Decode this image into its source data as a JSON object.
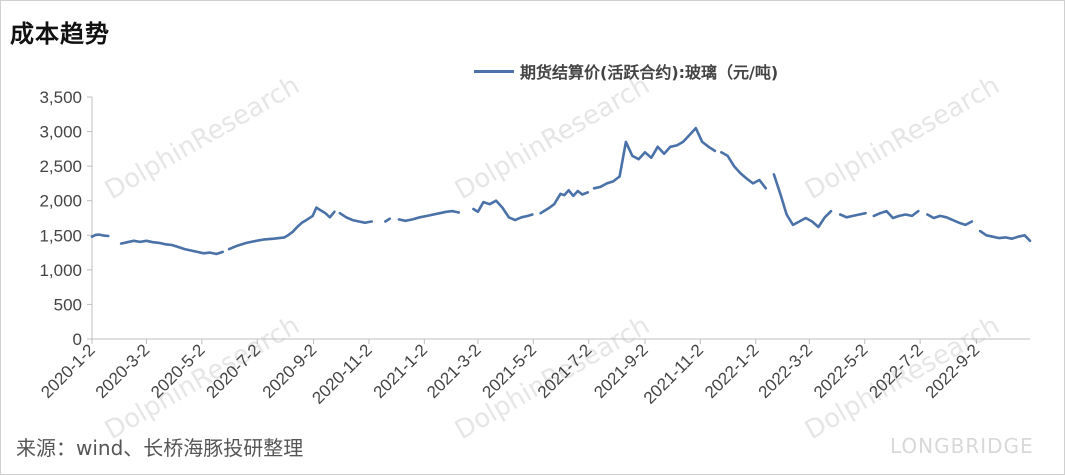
{
  "title": "成本趋势",
  "source": "来源：wind、长桥海豚投研整理",
  "watermark": {
    "brand": "LONGBRIDGE",
    "text": "DolphinResearch"
  },
  "colors": {
    "line": "#4a72a8",
    "axis": "#bfbfbf",
    "text": "#444444"
  },
  "chart_data": {
    "type": "line",
    "title": "",
    "xlabel": "",
    "ylabel": "",
    "ylim": [
      0,
      3500
    ],
    "yticks": [
      0,
      500,
      1000,
      1500,
      2000,
      2500,
      3000,
      3500
    ],
    "ytick_labels": [
      "0",
      "500",
      "1,000",
      "1,500",
      "2,000",
      "2,500",
      "3,000",
      "3,500"
    ],
    "xlim": [
      "2020-01-02",
      "2022-10-31"
    ],
    "xtick_labels": [
      "2020-1-2",
      "2020-3-2",
      "2020-5-2",
      "2020-7-2",
      "2020-9-2",
      "2020-11-2",
      "2021-1-2",
      "2021-3-2",
      "2021-5-2",
      "2021-7-2",
      "2021-9-2",
      "2021-11-2",
      "2022-1-2",
      "2022-3-2",
      "2022-5-2",
      "2022-7-2",
      "2022-9-2"
    ],
    "xticks": [
      "2020-01-02",
      "2020-03-02",
      "2020-05-02",
      "2020-07-02",
      "2020-09-02",
      "2020-11-02",
      "2021-01-02",
      "2021-03-02",
      "2021-05-02",
      "2021-07-02",
      "2021-09-02",
      "2021-11-02",
      "2022-01-02",
      "2022-03-02",
      "2022-05-02",
      "2022-07-02",
      "2022-09-02"
    ],
    "grid": false,
    "legend": "top",
    "series": [
      {
        "name": "期货结算价(活跃合约):玻璃（元/吨)",
        "segments": [
          {
            "x": [
              "2020-01-02",
              "2020-01-06",
              "2020-01-10",
              "2020-01-15",
              "2020-01-20"
            ],
            "y": [
              1480,
              1505,
              1510,
              1495,
              1490
            ]
          },
          {
            "x": [
              "2020-02-03",
              "2020-02-10",
              "2020-02-17",
              "2020-02-24",
              "2020-03-02",
              "2020-03-09",
              "2020-03-16",
              "2020-03-23",
              "2020-03-30",
              "2020-04-06",
              "2020-04-13",
              "2020-04-20",
              "2020-04-27",
              "2020-05-04",
              "2020-05-11",
              "2020-05-18",
              "2020-05-25"
            ],
            "y": [
              1380,
              1400,
              1420,
              1405,
              1420,
              1400,
              1390,
              1370,
              1360,
              1330,
              1300,
              1280,
              1260,
              1240,
              1250,
              1230,
              1260
            ]
          },
          {
            "x": [
              "2020-06-01",
              "2020-06-10",
              "2020-06-20",
              "2020-07-01",
              "2020-07-10",
              "2020-07-20",
              "2020-08-01",
              "2020-08-05",
              "2020-08-10",
              "2020-08-15",
              "2020-08-20",
              "2020-08-25",
              "2020-09-01",
              "2020-09-05",
              "2020-09-10",
              "2020-09-15",
              "2020-09-20",
              "2020-09-25"
            ],
            "y": [
              1300,
              1350,
              1390,
              1420,
              1440,
              1450,
              1470,
              1500,
              1550,
              1620,
              1680,
              1720,
              1780,
              1900,
              1860,
              1820,
              1760,
              1840
            ]
          },
          {
            "x": [
              "2020-10-01",
              "2020-10-08",
              "2020-10-15",
              "2020-10-22",
              "2020-10-29",
              "2020-11-01",
              "2020-11-05"
            ],
            "y": [
              1820,
              1760,
              1720,
              1700,
              1680,
              1690,
              1700
            ]
          },
          {
            "x": [
              "2020-11-20",
              "2020-11-25"
            ],
            "y": [
              1700,
              1740
            ]
          },
          {
            "x": [
              "2020-12-05",
              "2020-12-12",
              "2020-12-20",
              "2020-12-28",
              "2021-01-05",
              "2021-01-12",
              "2021-01-19",
              "2021-01-26",
              "2021-02-02",
              "2021-02-09"
            ],
            "y": [
              1730,
              1710,
              1730,
              1760,
              1780,
              1800,
              1820,
              1840,
              1850,
              1830
            ]
          },
          {
            "x": [
              "2021-02-25",
              "2021-03-02",
              "2021-03-08",
              "2021-03-15",
              "2021-03-22",
              "2021-03-29",
              "2021-04-05",
              "2021-04-12",
              "2021-04-19",
              "2021-04-26",
              "2021-05-01"
            ],
            "y": [
              1880,
              1840,
              1980,
              1950,
              2000,
              1900,
              1760,
              1720,
              1760,
              1780,
              1800
            ]
          },
          {
            "x": [
              "2021-05-10",
              "2021-05-15",
              "2021-05-20",
              "2021-05-25",
              "2021-06-01",
              "2021-06-05",
              "2021-06-10",
              "2021-06-15",
              "2021-06-20",
              "2021-06-25",
              "2021-07-01"
            ],
            "y": [
              1820,
              1860,
              1900,
              1950,
              2100,
              2080,
              2150,
              2070,
              2140,
              2090,
              2120
            ]
          },
          {
            "x": [
              "2021-07-08",
              "2021-07-15",
              "2021-07-22",
              "2021-07-29",
              "2021-08-05",
              "2021-08-12",
              "2021-08-19",
              "2021-08-26",
              "2021-09-02",
              "2021-09-09",
              "2021-09-16",
              "2021-09-23",
              "2021-09-30",
              "2021-10-07",
              "2021-10-14",
              "2021-10-21",
              "2021-10-28",
              "2021-11-04",
              "2021-11-11",
              "2021-11-18"
            ],
            "y": [
              2180,
              2200,
              2250,
              2280,
              2350,
              2850,
              2650,
              2600,
              2700,
              2620,
              2780,
              2680,
              2780,
              2800,
              2850,
              2950,
              3050,
              2850,
              2780,
              2720
            ]
          },
          {
            "x": [
              "2021-11-25",
              "2021-12-02",
              "2021-12-09",
              "2021-12-16",
              "2021-12-23",
              "2021-12-30",
              "2022-01-06",
              "2022-01-13"
            ],
            "y": [
              2700,
              2650,
              2500,
              2400,
              2320,
              2250,
              2300,
              2180
            ]
          },
          {
            "x": [
              "2022-01-22",
              "2022-01-29",
              "2022-02-05",
              "2022-02-12",
              "2022-02-19",
              "2022-02-26",
              "2022-03-05",
              "2022-03-12",
              "2022-03-19",
              "2022-03-26"
            ],
            "y": [
              2380,
              2100,
              1800,
              1650,
              1700,
              1750,
              1700,
              1620,
              1760,
              1850
            ]
          },
          {
            "x": [
              "2022-04-05",
              "2022-04-12",
              "2022-04-19",
              "2022-04-26",
              "2022-05-03"
            ],
            "y": [
              1800,
              1760,
              1780,
              1800,
              1820
            ]
          },
          {
            "x": [
              "2022-05-12",
              "2022-05-19",
              "2022-05-26",
              "2022-06-02",
              "2022-06-09",
              "2022-06-16",
              "2022-06-23",
              "2022-06-30"
            ],
            "y": [
              1780,
              1820,
              1850,
              1750,
              1780,
              1800,
              1780,
              1850
            ]
          },
          {
            "x": [
              "2022-07-10",
              "2022-07-17",
              "2022-07-24",
              "2022-07-31",
              "2022-08-07",
              "2022-08-14",
              "2022-08-21",
              "2022-08-28"
            ],
            "y": [
              1800,
              1750,
              1780,
              1760,
              1720,
              1680,
              1650,
              1700
            ]
          },
          {
            "x": [
              "2022-09-06",
              "2022-09-13",
              "2022-09-20",
              "2022-09-27",
              "2022-10-04",
              "2022-10-11",
              "2022-10-18",
              "2022-10-25",
              "2022-10-31"
            ],
            "y": [
              1560,
              1500,
              1480,
              1460,
              1470,
              1450,
              1480,
              1500,
              1420
            ]
          }
        ]
      }
    ]
  }
}
